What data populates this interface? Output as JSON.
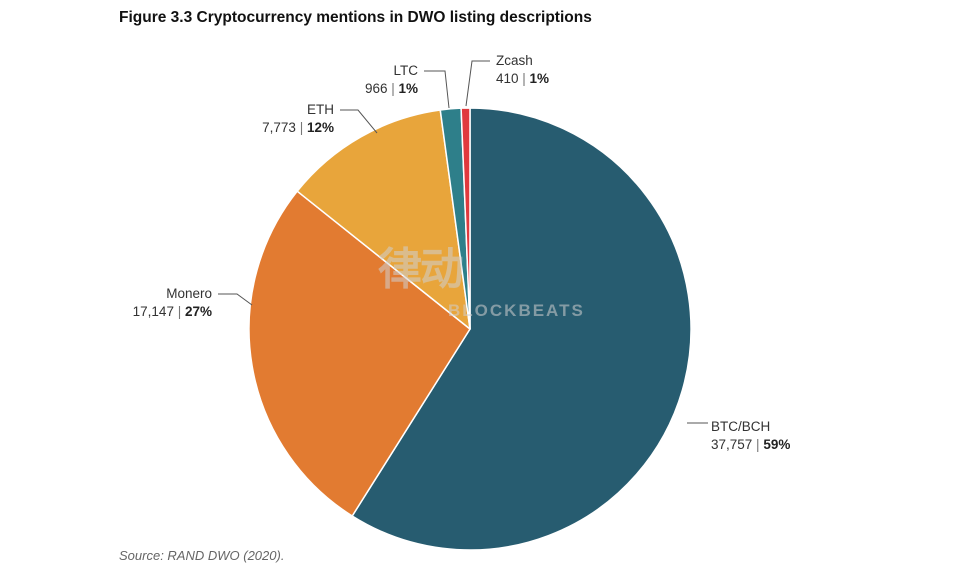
{
  "figure": {
    "title": "Figure 3.3 Cryptocurrency mentions in DWO listing descriptions",
    "source": "Source: RAND DWO (2020)."
  },
  "watermark": {
    "logo": "律动",
    "text": "BLOCKBEATS"
  },
  "chart_data": {
    "type": "pie",
    "title": "Figure 3.3 Cryptocurrency mentions in DWO listing descriptions",
    "start_angle_deg": 0,
    "direction": "clockwise",
    "slices": [
      {
        "label": "BTC/BCH",
        "value": 37757,
        "value_text": "37,757",
        "percent_text": "59%",
        "color": "#275c70"
      },
      {
        "label": "Monero",
        "value": 17147,
        "value_text": "17,147",
        "percent_text": "27%",
        "color": "#e27b31"
      },
      {
        "label": "ETH",
        "value": 7773,
        "value_text": "7,773",
        "percent_text": "12%",
        "color": "#e8a53b"
      },
      {
        "label": "LTC",
        "value": 966,
        "value_text": "966",
        "percent_text": "1%",
        "color": "#2e7f8a"
      },
      {
        "label": "Zcash",
        "value": 410,
        "value_text": "410",
        "percent_text": "1%",
        "color": "#e03a3e"
      }
    ]
  }
}
